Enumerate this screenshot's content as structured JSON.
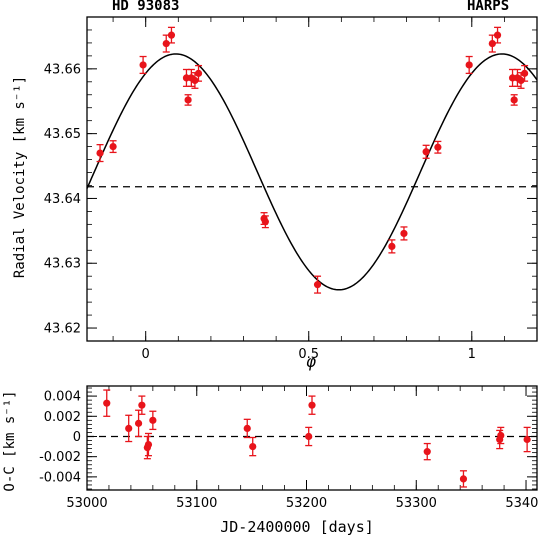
{
  "header": {
    "target": "HD 93083",
    "instrument": "HARPS"
  },
  "chart_data": [
    {
      "type": "scatter",
      "xlabel": "φ",
      "ylabel": "Radial Velocity [km s⁻¹]",
      "xlim": [
        -0.18,
        1.2
      ],
      "ylim": [
        43.618,
        43.668
      ],
      "x_ticks": [
        "0",
        "0.5",
        "1"
      ],
      "y_ticks": [
        "43.62",
        "43.63",
        "43.64",
        "43.65",
        "43.66"
      ],
      "x_tick_values": [
        0,
        0.5,
        1
      ],
      "y_tick_values": [
        43.62,
        43.63,
        43.64,
        43.65,
        43.66
      ],
      "reference_line": {
        "style": "dashed",
        "y": 43.6418
      },
      "model_curve": {
        "style": "solid",
        "mean": 43.6441,
        "amplitude": 0.0182,
        "phase_of_max": 0.0924
      },
      "series": [
        {
          "color": "#e8141b",
          "x": [
            -0.14,
            -0.1,
            -0.008,
            0.063,
            0.079,
            0.125,
            0.13,
            0.14,
            0.151,
            0.162,
            0.363,
            0.367,
            0.527,
            0.755,
            0.792,
            0.86,
            0.896,
            0.992,
            1.063,
            1.079,
            1.125,
            1.13,
            1.14,
            1.151,
            1.162
          ],
          "y": [
            43.647,
            43.648,
            43.6606,
            43.6639,
            43.6652,
            43.6586,
            43.6552,
            43.6586,
            43.6582,
            43.6593,
            43.6369,
            43.6364,
            43.6267,
            43.6326,
            43.6346,
            43.6472,
            43.6479,
            43.6606,
            43.6639,
            43.6652,
            43.6586,
            43.6552,
            43.6586,
            43.6582,
            43.6593
          ],
          "err": [
            0.0013,
            0.0009,
            0.0013,
            0.0013,
            0.0012,
            0.0013,
            0.0008,
            0.0013,
            0.0012,
            0.0012,
            0.0009,
            0.0009,
            0.0013,
            0.001,
            0.001,
            0.001,
            0.0009,
            0.0013,
            0.0013,
            0.0012,
            0.0013,
            0.0008,
            0.0013,
            0.0012,
            0.0012
          ]
        }
      ]
    },
    {
      "type": "scatter",
      "xlabel": "JD-2400000 [days]",
      "ylabel": "O-C [km s⁻¹]",
      "xlim": [
        53000,
        53410
      ],
      "ylim": [
        -0.0053,
        0.005
      ],
      "x_ticks": [
        "53000",
        "53100",
        "53200",
        "53300",
        "53400"
      ],
      "y_ticks": [
        "0.004",
        "0.002",
        "0",
        "-0.002",
        "-0.004"
      ],
      "x_tick_values": [
        53000,
        53100,
        53200,
        53300,
        53400
      ],
      "y_tick_values": [
        0.004,
        0.002,
        0,
        -0.002,
        -0.004
      ],
      "reference_line": {
        "style": "dashed",
        "y": 0
      },
      "series": [
        {
          "color": "#e8141b",
          "x": [
            53018,
            53038,
            53047,
            53050,
            53055,
            53056,
            53060,
            53146,
            53151,
            53202,
            53205,
            53310,
            53343,
            53376,
            53377,
            53401
          ],
          "y": [
            0.0033,
            0.0008,
            0.0013,
            0.0031,
            -0.0011,
            -0.0008,
            0.0016,
            0.0008,
            -0.001,
            0.0,
            0.0031,
            -0.0015,
            -0.0042,
            -0.0003,
            0.0001,
            -0.0003
          ],
          "err": [
            0.0013,
            0.0013,
            0.0013,
            0.0009,
            0.0011,
            0.0011,
            0.0009,
            0.0009,
            0.0009,
            0.0009,
            0.0009,
            0.0008,
            0.0008,
            0.0009,
            0.0008,
            0.0012
          ]
        }
      ]
    }
  ]
}
